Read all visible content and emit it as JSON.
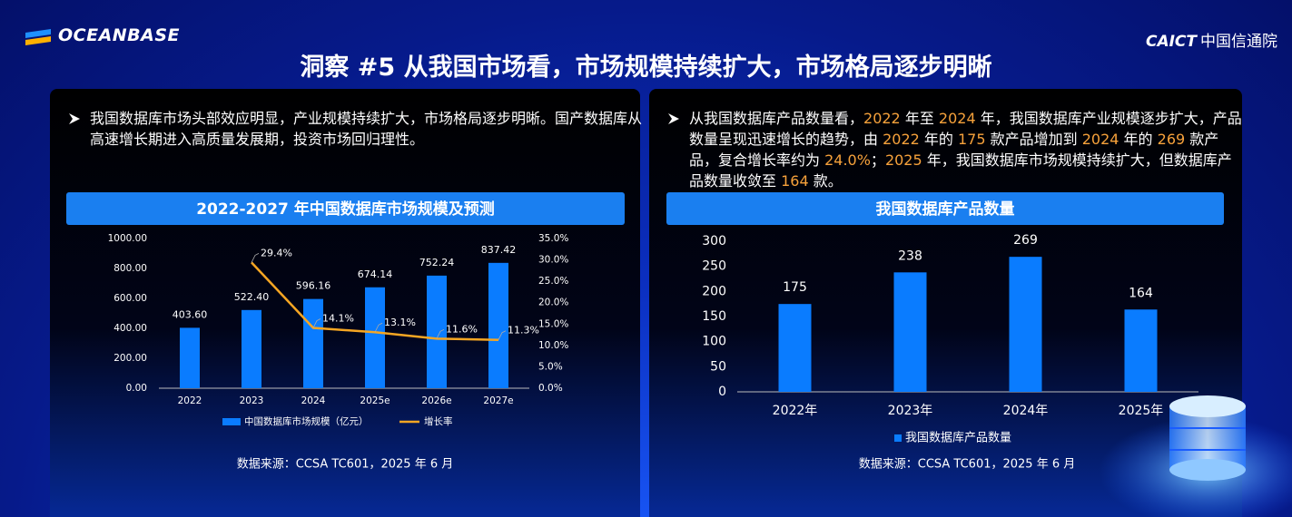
{
  "header": {
    "logo": "OCEANBASE",
    "org_abbr": "CAICT",
    "org_name": "中国信通院",
    "title": "洞察 #5 从我国市场看，市场规模持续扩大，市场格局逐步明晰"
  },
  "panels": [
    {
      "bullet": [
        "我国数据库市场头部效应明显，产业规模持续扩大，市场格局逐步明晰。国产数据库从高速增长期进入高质量发展期，投资市场回归理性。"
      ],
      "source": "数据来源：CCSA TC601，2025 年 6 月"
    },
    {
      "bullet": [
        "从我国数据库产品数量看，",
        "2022",
        " 年至 ",
        "2024",
        " 年，我国数据库产业规模逐步扩大，产品数量呈现迅速增长的趋势，由 ",
        "2022",
        " 年的 ",
        "175",
        " 款产品增加到 ",
        "2024",
        " 年的 ",
        "269",
        " 款产品，复合增长率约为 ",
        "24.0%",
        "；",
        "2025",
        " 年，我国数据库市场规模持续扩大，但数据库产品数量收敛至 ",
        "164",
        " 款。"
      ],
      "source": "数据来源：CCSA TC601，2025 年 6 月"
    }
  ],
  "chart_data": [
    {
      "type": "combo",
      "title": "2022-2027 年中国数据库市场规模及预测",
      "categories": [
        "2022",
        "2023",
        "2024",
        "2025e",
        "2026e",
        "2027e"
      ],
      "series": [
        {
          "name": "中国数据库市场规模（亿元）",
          "kind": "bar",
          "color": "#0a7cff",
          "values": [
            403.6,
            522.4,
            596.16,
            674.14,
            752.24,
            837.42
          ],
          "value_labels": [
            "403.60",
            "522.40",
            "596.16",
            "674.14",
            "752.24",
            "837.42"
          ]
        },
        {
          "name": "增长率",
          "kind": "line",
          "axis": "y2",
          "color": "#f5a623",
          "values": [
            null,
            29.4,
            14.1,
            13.1,
            11.6,
            11.3
          ],
          "value_labels": [
            null,
            "29.4%",
            "14.1%",
            "13.1%",
            "11.6%",
            "11.3%"
          ]
        }
      ],
      "ylim": [
        0,
        1000
      ],
      "yticks": [
        {
          "value": 0,
          "label": "0.00"
        },
        {
          "value": 200,
          "label": "200.00"
        },
        {
          "value": 400,
          "label": "400.00"
        },
        {
          "value": 600,
          "label": "600.00"
        },
        {
          "value": 800,
          "label": "800.00"
        },
        {
          "value": 1000,
          "label": "1000.00"
        }
      ],
      "y2lim": [
        0,
        35
      ],
      "y2ticks": [
        {
          "value": 0,
          "label": "0.0%"
        },
        {
          "value": 5,
          "label": "5.0%"
        },
        {
          "value": 10,
          "label": "10.0%"
        },
        {
          "value": 15,
          "label": "15.0%"
        },
        {
          "value": 20,
          "label": "20.0%"
        },
        {
          "value": 25,
          "label": "25.0%"
        },
        {
          "value": 30,
          "label": "30.0%"
        },
        {
          "value": 35,
          "label": "35.0%"
        }
      ],
      "legend": "bottom"
    },
    {
      "type": "bar",
      "title": "我国数据库产品数量",
      "categories": [
        "2022年",
        "2023年",
        "2024年",
        "2025年"
      ],
      "series": [
        {
          "name": "我国数据库产品数量",
          "kind": "bar",
          "color": "#0a7cff",
          "values": [
            175,
            238,
            269,
            164
          ]
        }
      ],
      "ylim": [
        0,
        300
      ],
      "yticks": [
        0,
        50,
        100,
        150,
        200,
        250,
        300
      ],
      "legend": "bottom"
    }
  ]
}
